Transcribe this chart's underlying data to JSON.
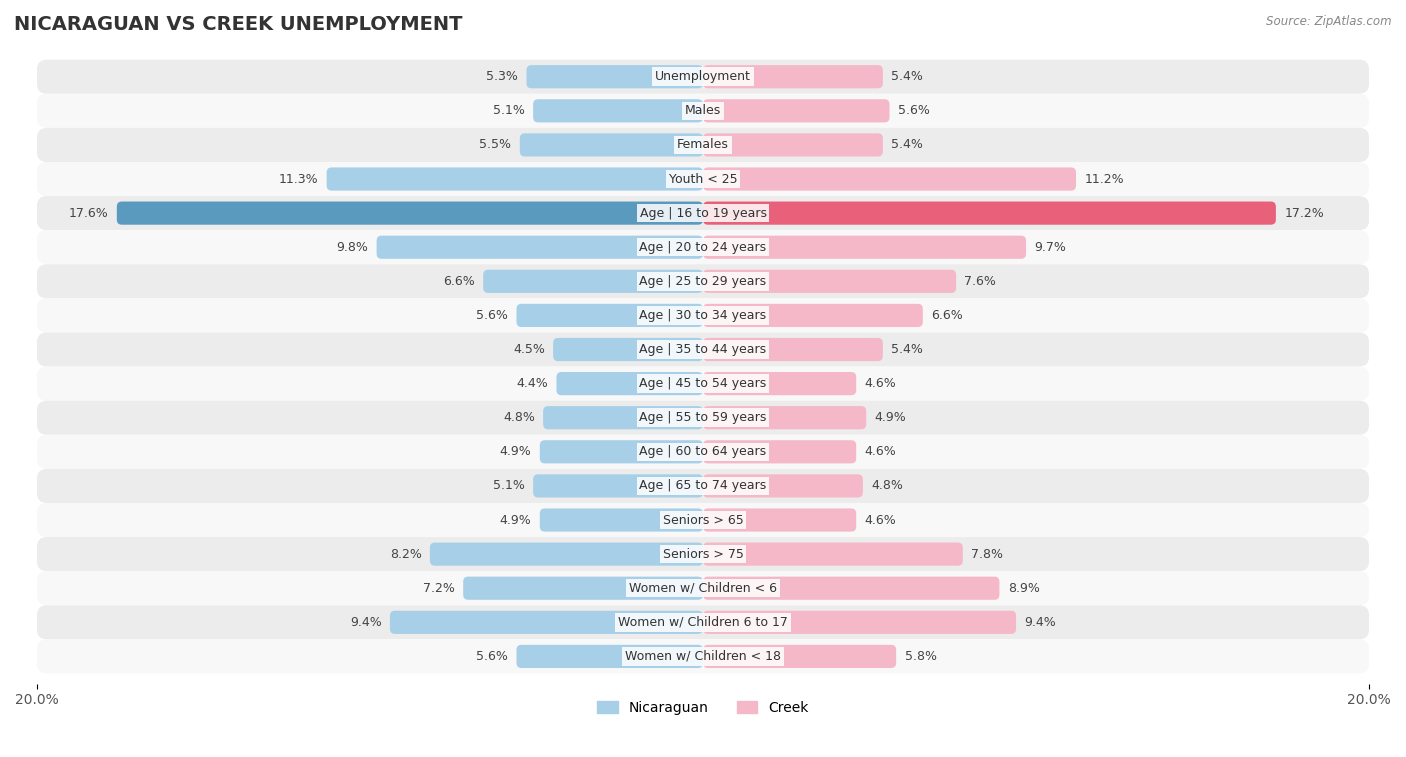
{
  "title": "NICARAGUAN VS CREEK UNEMPLOYMENT",
  "source": "Source: ZipAtlas.com",
  "categories": [
    "Unemployment",
    "Males",
    "Females",
    "Youth < 25",
    "Age | 16 to 19 years",
    "Age | 20 to 24 years",
    "Age | 25 to 29 years",
    "Age | 30 to 34 years",
    "Age | 35 to 44 years",
    "Age | 45 to 54 years",
    "Age | 55 to 59 years",
    "Age | 60 to 64 years",
    "Age | 65 to 74 years",
    "Seniors > 65",
    "Seniors > 75",
    "Women w/ Children < 6",
    "Women w/ Children 6 to 17",
    "Women w/ Children < 18"
  ],
  "nicaraguan": [
    5.3,
    5.1,
    5.5,
    11.3,
    17.6,
    9.8,
    6.6,
    5.6,
    4.5,
    4.4,
    4.8,
    4.9,
    5.1,
    4.9,
    8.2,
    7.2,
    9.4,
    5.6
  ],
  "creek": [
    5.4,
    5.6,
    5.4,
    11.2,
    17.2,
    9.7,
    7.6,
    6.6,
    5.4,
    4.6,
    4.9,
    4.6,
    4.8,
    4.6,
    7.8,
    8.9,
    9.4,
    5.8
  ],
  "nicaraguan_color": "#a8cfe8",
  "creek_color": "#f4b8c8",
  "highlight_nicaraguan_color": "#5b9abf",
  "highlight_creek_color": "#e8607a",
  "row_bg_light": "#ececec",
  "row_bg_white": "#f8f8f8",
  "max_val": 20.0,
  "title_fontsize": 14,
  "axis_fontsize": 10,
  "bar_label_fontsize": 9,
  "category_fontsize": 9,
  "legend_fontsize": 10,
  "highlight_indices": [
    4
  ]
}
